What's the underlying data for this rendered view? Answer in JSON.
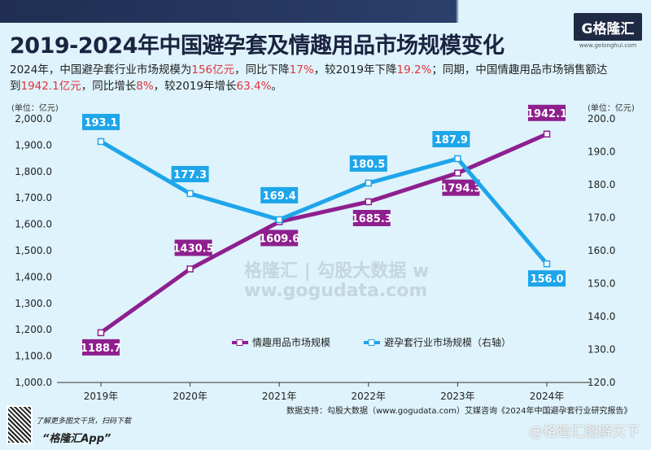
{
  "header": {
    "title": "2019-2024年中国避孕套及情趣用品市场规模变化",
    "logo": "G格隆汇",
    "logo_url": "www.gelonghui.com"
  },
  "subtitle": {
    "p1": "2024年，中国避孕套行业市场规模为",
    "v1": "156亿元",
    "p2": "，同比下降",
    "v2": "17%",
    "p3": "，较2019年下降",
    "v3": "19.2%",
    "p4": "；同期，中国情趣用品市场销售额达到",
    "v4": "1942.1亿元",
    "p5": "，同比增长",
    "v5": "8%",
    "p6": "，较2019年增长",
    "v6": "63.4%",
    "p7": "。"
  },
  "chart_data": {
    "type": "line",
    "categories": [
      "2019年",
      "2020年",
      "2021年",
      "2022年",
      "2023年",
      "2024年"
    ],
    "series": [
      {
        "name": "情趣用品市场规模",
        "axis": "left",
        "color": "#8e1f8e",
        "values": [
          1188.7,
          1430.5,
          1609.6,
          1685.3,
          1794.3,
          1942.1
        ],
        "labels": [
          "1188.7",
          "1430.5",
          "1609.6",
          "1685.3",
          "1794.3",
          "1942.1"
        ]
      },
      {
        "name": "避孕套行业市场规模（右轴）",
        "axis": "right",
        "color": "#1ea5ea",
        "values": [
          193.1,
          177.3,
          169.4,
          180.5,
          187.9,
          156.0
        ],
        "labels": [
          "193.1",
          "177.3",
          "169.4",
          "180.5",
          "187.9",
          "156.0"
        ]
      }
    ],
    "ylim_left": [
      1000,
      2000
    ],
    "yticks_left": [
      "1,000.0",
      "1,100.0",
      "1,200.0",
      "1,300.0",
      "1,400.0",
      "1,500.0",
      "1,600.0",
      "1,700.0",
      "1,800.0",
      "1,900.0",
      "2,000.0"
    ],
    "ylim_right": [
      120,
      200
    ],
    "yticks_right": [
      "120.0",
      "130.0",
      "140.0",
      "150.0",
      "160.0",
      "170.0",
      "180.0",
      "190.0",
      "200.0"
    ],
    "ylabel_left": "(单位：亿元)",
    "ylabel_right": "(单位：亿元)",
    "legend_position": "bottom-center",
    "grid": false
  },
  "watermark_center": "格隆汇 | 勾股大数据 www.gogudata.com",
  "footer": {
    "tip": "了解更多图文干货，扫码下载",
    "app": "“格隆汇App”",
    "source": "数据支持：勾股大数据（www.gogudata.com）艾媒咨询《2024年中国避孕套行业研究报告》",
    "watermark": "@格隆汇图解天下"
  }
}
